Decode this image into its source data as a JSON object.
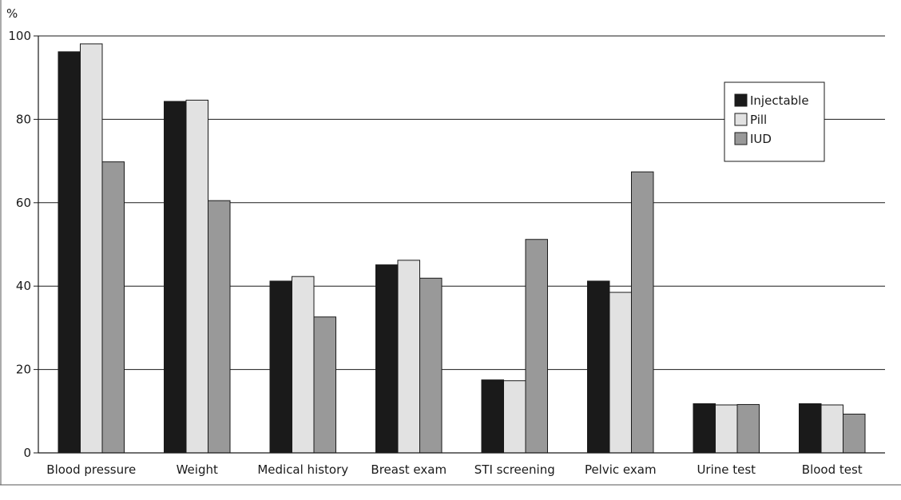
{
  "chart_data": {
    "type": "bar",
    "ylabel": "%",
    "ylim": [
      0,
      100
    ],
    "yticks": [
      0,
      20,
      40,
      60,
      80,
      100
    ],
    "grid": true,
    "legend_position": "top-right",
    "categories": [
      "Blood pressure",
      "Weight",
      "Medical history",
      "Breast exam",
      "STI screening",
      "Pelvic exam",
      "Urine test",
      "Blood test"
    ],
    "series": [
      {
        "name": "Injectable",
        "color": "#1a1a1a",
        "values": [
          96.2,
          84.3,
          41.2,
          45.1,
          17.5,
          41.2,
          11.8,
          11.8
        ]
      },
      {
        "name": "Pill",
        "color": "#e2e2e2",
        "values": [
          98.1,
          84.6,
          42.3,
          46.2,
          17.3,
          38.5,
          11.5,
          11.5
        ]
      },
      {
        "name": "IUD",
        "color": "#999999",
        "values": [
          69.8,
          60.5,
          32.6,
          41.9,
          51.2,
          67.4,
          11.6,
          9.3
        ]
      }
    ]
  }
}
